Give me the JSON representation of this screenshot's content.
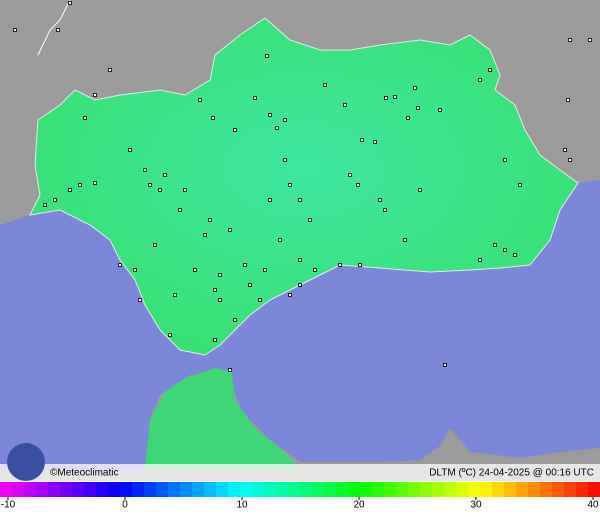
{
  "map": {
    "credit": "©Meteoclimatic",
    "caption": "DLTM (ºC)  24-04-2025 @ 00:16 UTC",
    "scale": {
      "lim": [
        -10,
        40
      ],
      "ticks": [
        -10,
        0,
        10,
        20,
        30,
        40
      ]
    }
  }
}
